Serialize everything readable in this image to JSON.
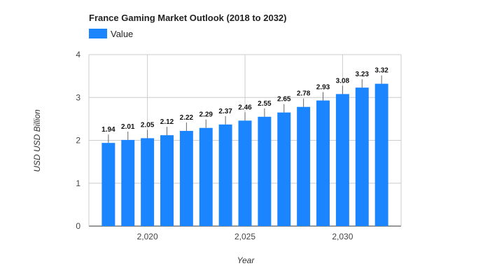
{
  "chart_data": {
    "type": "bar",
    "title": "France Gaming Market Outlook (2018 to 2032)",
    "xlabel": "Year",
    "ylabel": "USD USD Billion",
    "series": [
      {
        "name": "Value",
        "color": "#1a85ff",
        "x": [
          2018,
          2019,
          2020,
          2021,
          2022,
          2023,
          2024,
          2025,
          2026,
          2027,
          2028,
          2029,
          2030,
          2031,
          2032
        ],
        "values": [
          1.94,
          2.01,
          2.05,
          2.12,
          2.22,
          2.29,
          2.37,
          2.46,
          2.55,
          2.65,
          2.78,
          2.93,
          3.08,
          3.23,
          3.32
        ],
        "labels": [
          "1.94",
          "2.01",
          "2.05",
          "2.12",
          "2.22",
          "2.29",
          "2.37",
          "2.46",
          "2.55",
          "2.65",
          "2.78",
          "2.93",
          "3.08",
          "3.23",
          "3.32"
        ]
      }
    ],
    "xlim": [
      2017,
      2033
    ],
    "ylim": [
      0,
      4
    ],
    "x_ticks": [
      2020,
      2025,
      2030
    ],
    "x_tick_labels": [
      "2,020",
      "2,025",
      "2,030"
    ],
    "y_ticks": [
      0,
      1,
      2,
      3,
      4
    ],
    "y_tick_labels": [
      "0",
      "1",
      "2",
      "3",
      "4"
    ],
    "grid": true,
    "legend_position": "top-left",
    "bar_color": "#1a85ff"
  }
}
